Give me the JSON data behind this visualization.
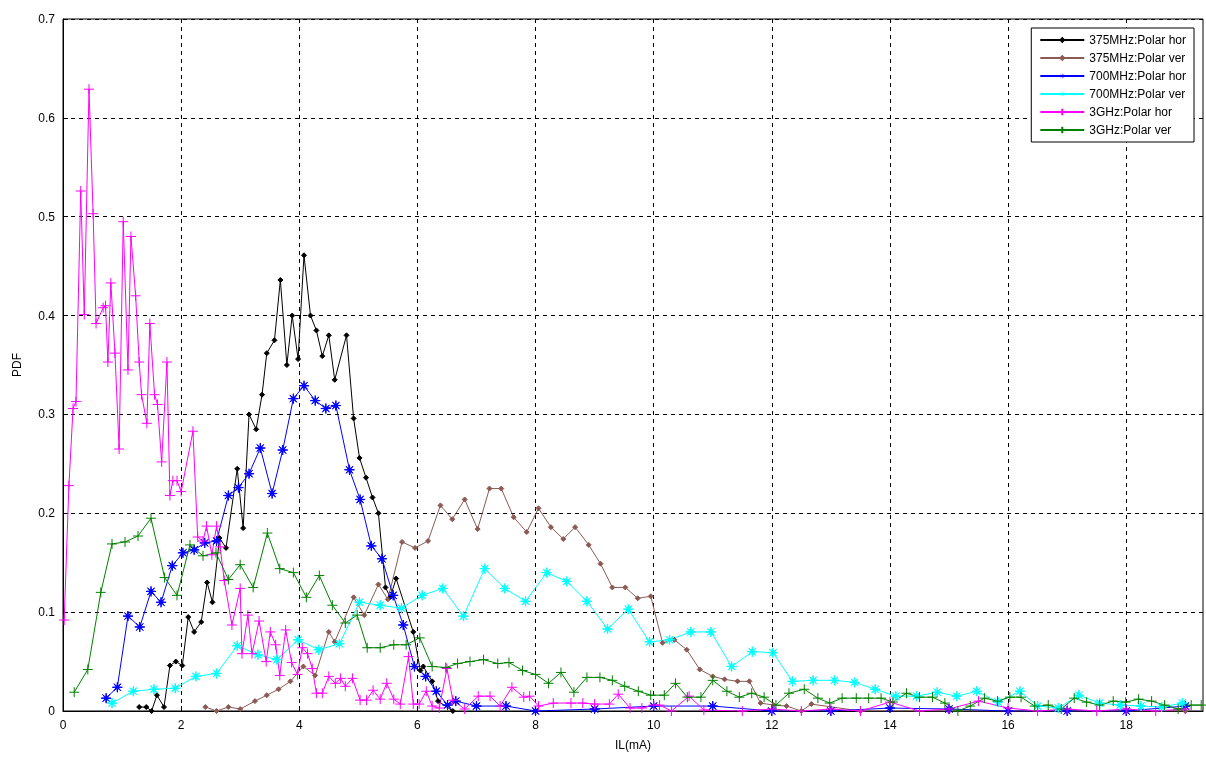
{
  "chart_data": {
    "type": "line",
    "xlabel": "IL(mA)",
    "ylabel": "PDF",
    "xlim": [
      0,
      19.3
    ],
    "xticks": [
      0,
      2,
      4,
      6,
      8,
      10,
      12,
      14,
      16,
      18
    ],
    "ylim": [
      0,
      0.7
    ],
    "yticks": [
      0,
      0.1,
      0.2,
      0.3,
      0.4,
      0.5,
      0.6,
      0.7
    ],
    "grid": true,
    "legend": "top right",
    "line_style": "solid",
    "series": [
      {
        "name": "375MHz:Polar hor",
        "color": "#000000",
        "marker": "diamond",
        "x": [
          1.29,
          1.41,
          1.5,
          1.59,
          1.71,
          1.81,
          1.91,
          2.02,
          2.12,
          2.22,
          2.34,
          2.44,
          2.53,
          2.65,
          2.76,
          2.95,
          3.05,
          3.15,
          3.27,
          3.37,
          3.45,
          3.58,
          3.68,
          3.79,
          3.88,
          3.98,
          4.08,
          4.19,
          4.29,
          4.39,
          4.5,
          4.6,
          4.8,
          4.92,
          5.02,
          5.13,
          5.24,
          5.34,
          5.46,
          5.54,
          5.64,
          5.93,
          6.05,
          6.1,
          6.25,
          6.35,
          6.6
        ],
        "values": [
          0.004,
          0.004,
          0,
          0.016,
          0.004,
          0.046,
          0.05,
          0.046,
          0.095,
          0.08,
          0.09,
          0.13,
          0.11,
          0.175,
          0.165,
          0.245,
          0.185,
          0.3,
          0.285,
          0.32,
          0.362,
          0.375,
          0.436,
          0.35,
          0.4,
          0.356,
          0.461,
          0.4,
          0.385,
          0.359,
          0.38,
          0.335,
          0.38,
          0.296,
          0.256,
          0.236,
          0.216,
          0.2,
          0.125,
          0.115,
          0.134,
          0.08,
          0.041,
          0.045,
          0.03,
          0.01,
          0
        ]
      },
      {
        "name": "375MHz:Polar ver",
        "color": "#8b5a55",
        "marker": "diamond",
        "x": [
          2.41,
          2.6,
          2.8,
          3.0,
          3.25,
          3.45,
          3.65,
          3.85,
          4.07,
          4.27,
          4.5,
          4.6,
          4.92,
          5.1,
          5.34,
          5.5,
          5.74,
          5.96,
          6.18,
          6.39,
          6.59,
          6.8,
          7.02,
          7.22,
          7.42,
          7.63,
          7.85,
          8.05,
          8.26,
          8.47,
          8.67,
          8.9,
          9.1,
          9.3,
          9.52,
          9.73,
          9.95,
          10.15,
          10.35,
          10.56,
          10.78,
          11.0,
          11.2,
          11.42,
          11.62,
          11.81,
          12.03,
          12.25,
          12.5,
          12.67,
          13.5,
          15,
          17,
          19
        ],
        "values": [
          0.004,
          0,
          0.004,
          0.002,
          0.01,
          0.016,
          0.022,
          0.03,
          0.045,
          0.036,
          0.08,
          0.07,
          0.115,
          0.097,
          0.128,
          0.113,
          0.171,
          0.165,
          0.172,
          0.208,
          0.194,
          0.214,
          0.184,
          0.225,
          0.225,
          0.196,
          0.181,
          0.205,
          0.186,
          0.174,
          0.186,
          0.168,
          0.149,
          0.125,
          0.125,
          0.114,
          0.116,
          0.069,
          0.072,
          0.062,
          0.042,
          0.035,
          0.032,
          0.03,
          0.03,
          0.008,
          0.006,
          0.005,
          0,
          0.007,
          0,
          0,
          0,
          0
        ]
      },
      {
        "name": "700MHz:Polar hor",
        "color": "#0000ff",
        "marker": "star",
        "x": [
          0.73,
          0.92,
          1.1,
          1.3,
          1.49,
          1.66,
          1.85,
          2.03,
          2.22,
          2.4,
          2.6,
          2.8,
          2.97,
          3.15,
          3.34,
          3.54,
          3.72,
          3.9,
          4.08,
          4.27,
          4.45,
          4.62,
          4.85,
          5.03,
          5.22,
          5.4,
          5.59,
          5.76,
          5.95,
          6.14,
          6.32,
          6.51,
          6.65,
          7,
          7.5,
          8,
          9,
          10,
          11,
          12,
          13,
          14,
          15,
          16,
          17,
          18,
          19
        ],
        "values": [
          0.013,
          0.024,
          0.096,
          0.085,
          0.121,
          0.11,
          0.147,
          0.16,
          0.163,
          0.17,
          0.172,
          0.218,
          0.226,
          0.24,
          0.266,
          0.22,
          0.264,
          0.316,
          0.329,
          0.314,
          0.306,
          0.309,
          0.244,
          0.214,
          0.167,
          0.154,
          0.117,
          0.087,
          0.045,
          0.035,
          0.02,
          0.006,
          0.01,
          0.005,
          0.005,
          0,
          0.002,
          0.005,
          0.005,
          0,
          0,
          0.003,
          0.002,
          0,
          0,
          0,
          0.005
        ]
      },
      {
        "name": "700MHz:Polar ver",
        "color": "#00ffff",
        "marker": "star",
        "x": [
          0.83,
          1.19,
          1.54,
          1.9,
          2.25,
          2.6,
          2.95,
          3.3,
          3.62,
          3.98,
          4.33,
          4.68,
          5.02,
          5.37,
          5.73,
          6.08,
          6.43,
          6.78,
          7.14,
          7.48,
          7.83,
          8.19,
          8.53,
          8.87,
          9.22,
          9.57,
          9.93,
          10.27,
          10.63,
          10.97,
          11.32,
          11.67,
          12.02,
          12.35,
          12.7,
          13.06,
          13.4,
          13.75,
          14.1,
          14.45,
          14.8,
          15.13,
          15.47,
          15.83,
          16.2,
          16.5,
          16.85,
          17.2,
          17.55,
          17.9,
          18.25,
          18.6,
          18.95
        ],
        "values": [
          0.008,
          0.02,
          0.022,
          0.023,
          0.035,
          0.038,
          0.066,
          0.057,
          0.052,
          0.072,
          0.062,
          0.068,
          0.11,
          0.107,
          0.104,
          0.117,
          0.124,
          0.096,
          0.144,
          0.124,
          0.111,
          0.14,
          0.131,
          0.111,
          0.083,
          0.103,
          0.07,
          0.072,
          0.08,
          0.08,
          0.045,
          0.06,
          0.059,
          0.03,
          0.031,
          0.031,
          0.029,
          0.022,
          0.015,
          0.015,
          0.019,
          0.015,
          0.02,
          0.009,
          0.02,
          0.005,
          0.003,
          0.016,
          0.008,
          0.006,
          0.005,
          0.004,
          0.008
        ]
      },
      {
        "name": "3GHz:Polar hor",
        "color": "#ff00ff",
        "marker": "cross",
        "x": [
          0.02,
          0.1,
          0.17,
          0.22,
          0.3,
          0.36,
          0.44,
          0.51,
          0.56,
          0.68,
          0.72,
          0.76,
          0.81,
          0.88,
          0.95,
          1.02,
          1.1,
          1.15,
          1.23,
          1.29,
          1.33,
          1.42,
          1.47,
          1.55,
          1.6,
          1.67,
          1.76,
          1.81,
          1.86,
          1.93,
          2.0,
          2.2,
          2.28,
          2.37,
          2.43,
          2.52,
          2.6,
          2.66,
          2.73,
          2.86,
          3.0,
          3.03,
          3.13,
          3.2,
          3.32,
          3.44,
          3.51,
          3.6,
          3.67,
          3.77,
          3.87,
          3.97,
          4.05,
          4.14,
          4.22,
          4.29,
          4.39,
          4.5,
          4.61,
          4.7,
          4.78,
          4.9,
          5.03,
          5.14,
          5.25,
          5.37,
          5.48,
          5.6,
          5.71,
          5.85,
          5.93,
          6.03,
          6.15,
          6.25,
          6.37,
          6.5,
          6.6,
          6.8,
          7.03,
          7.23,
          7.4,
          7.6,
          7.8,
          7.9,
          8.05,
          8.3,
          8.6,
          8.8,
          9.0,
          9.25,
          9.4,
          9.6,
          9.8,
          10.0,
          10.1,
          10.3,
          10.6,
          10.85,
          11.5,
          12,
          12.5,
          13,
          13.5,
          14,
          14.5,
          15,
          15.5,
          16,
          16.5,
          17,
          17.5,
          18,
          18.5,
          19
        ],
        "values": [
          0.092,
          0.228,
          0.306,
          0.313,
          0.526,
          0.401,
          0.629,
          0.503,
          0.392,
          0.408,
          0.41,
          0.353,
          0.433,
          0.362,
          0.265,
          0.495,
          0.345,
          0.48,
          0.42,
          0.353,
          0.32,
          0.291,
          0.392,
          0.32,
          0.31,
          0.252,
          0.353,
          0.218,
          0.233,
          0.233,
          0.222,
          0.283,
          0.176,
          0.172,
          0.187,
          0.158,
          0.187,
          0.166,
          0.132,
          0.087,
          0.124,
          0.058,
          0.097,
          0.058,
          0.091,
          0.05,
          0.08,
          0.067,
          0.036,
          0.082,
          0.049,
          0.037,
          0.064,
          0.058,
          0.043,
          0.018,
          0.018,
          0.035,
          0.028,
          0.033,
          0.025,
          0.033,
          0.011,
          0.011,
          0.021,
          0.012,
          0.028,
          0.012,
          0.007,
          0.055,
          0.007,
          0.007,
          0.02,
          0.005,
          0.003,
          0.043,
          0.011,
          0.002,
          0.015,
          0.015,
          0.005,
          0.024,
          0.014,
          0.015,
          0.005,
          0.008,
          0.008,
          0.008,
          0.007,
          0.007,
          0.017,
          0.003,
          0.003,
          0.006,
          0.006,
          0,
          0.015,
          0.001,
          0,
          0.002,
          0,
          0.002,
          0,
          0.009,
          0,
          0.002,
          0.01,
          0.003,
          0,
          0.002,
          0,
          0.002,
          0,
          0.002
        ]
      },
      {
        "name": "3GHz:Polar ver",
        "color": "#008000",
        "marker": "cross",
        "x": [
          0.19,
          0.42,
          0.64,
          0.83,
          1.05,
          1.27,
          1.49,
          1.72,
          1.93,
          2.15,
          2.37,
          2.59,
          2.8,
          3.0,
          3.22,
          3.46,
          3.67,
          3.9,
          4.12,
          4.34,
          4.56,
          4.78,
          4.98,
          5.15,
          5.37,
          5.6,
          5.81,
          6.04,
          6.25,
          6.48,
          6.68,
          6.89,
          7.12,
          7.36,
          7.55,
          7.78,
          8.0,
          8.22,
          8.43,
          8.65,
          8.87,
          9.09,
          9.3,
          9.51,
          9.74,
          9.95,
          10.18,
          10.37,
          10.57,
          10.8,
          11.0,
          11.24,
          11.45,
          11.66,
          11.87,
          12.07,
          12.29,
          12.55,
          12.78,
          12.98,
          13.19,
          13.43,
          13.64,
          13.85,
          14.05,
          14.28,
          14.5,
          14.72,
          14.93,
          15.15,
          15.36,
          15.6,
          15.82,
          16.03,
          16.22,
          16.45,
          16.68,
          16.9,
          17.12,
          17.33,
          17.55,
          17.78,
          17.99,
          18.21,
          18.43,
          18.65,
          18.88,
          19.1,
          19.27
        ],
        "values": [
          0.019,
          0.042,
          0.12,
          0.169,
          0.171,
          0.177,
          0.195,
          0.135,
          0.117,
          0.168,
          0.157,
          0.16,
          0.133,
          0.148,
          0.125,
          0.18,
          0.144,
          0.14,
          0.115,
          0.137,
          0.107,
          0.089,
          0.097,
          0.064,
          0.064,
          0.067,
          0.067,
          0.074,
          0.045,
          0.044,
          0.048,
          0.05,
          0.052,
          0.048,
          0.049,
          0.041,
          0.037,
          0.028,
          0.039,
          0.019,
          0.034,
          0.034,
          0.031,
          0.025,
          0.02,
          0.016,
          0.016,
          0.028,
          0.014,
          0.014,
          0.031,
          0.02,
          0.014,
          0.018,
          0.014,
          0.006,
          0.018,
          0.022,
          0.013,
          0.008,
          0.013,
          0.013,
          0.013,
          0.013,
          0.009,
          0.018,
          0.014,
          0.014,
          0.008,
          0,
          0.005,
          0.013,
          0.01,
          0.014,
          0.014,
          0.005,
          0.006,
          0.002,
          0.013,
          0.009,
          0.006,
          0.01,
          0.009,
          0.012,
          0.01,
          0.006,
          0.002,
          0.006,
          0.006
        ]
      }
    ]
  }
}
